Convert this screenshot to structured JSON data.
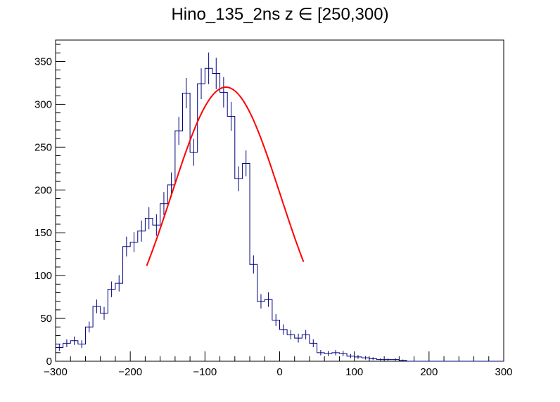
{
  "chart_data": {
    "type": "histogram",
    "title": "Hino_135_2ns z  ∈ [250,300)",
    "xlabel": "",
    "ylabel": "",
    "xlim": [
      -300,
      300
    ],
    "ylim": [
      0,
      375
    ],
    "grid": false,
    "bin_width": 10,
    "x_ticks": [
      -300,
      -200,
      -100,
      0,
      100,
      200,
      300
    ],
    "x_tick_labels": [
      "−300",
      "−200",
      "−100",
      "0",
      "100",
      "200",
      "300"
    ],
    "y_ticks": [
      0,
      50,
      100,
      150,
      200,
      250,
      300,
      350
    ],
    "y_tick_labels": [
      "0",
      "50",
      "100",
      "150",
      "200",
      "250",
      "300",
      "350"
    ],
    "series": [
      {
        "type": "histogram",
        "color": "#000080",
        "bin_low_edges": [
          -300,
          -290,
          -280,
          -270,
          -260,
          -250,
          -240,
          -230,
          -220,
          -210,
          -200,
          -190,
          -180,
          -170,
          -160,
          -150,
          -140,
          -130,
          -120,
          -110,
          -100,
          -90,
          -80,
          -70,
          -60,
          -50,
          -40,
          -30,
          -20,
          -10,
          0,
          10,
          20,
          30,
          40,
          50,
          60,
          70,
          80,
          90,
          100,
          110,
          120,
          130,
          140,
          150,
          160,
          170,
          180,
          190,
          200,
          210,
          220,
          230,
          240,
          250,
          260,
          270,
          280,
          290
        ],
        "values": [
          16,
          21,
          24,
          20,
          40,
          64,
          56,
          84,
          91,
          134,
          139,
          152,
          167,
          159,
          184,
          206,
          269,
          313,
          244,
          324,
          342,
          336,
          314,
          286,
          213,
          231,
          113,
          70,
          72,
          48,
          37,
          31,
          27,
          31,
          21,
          10,
          9,
          10,
          9,
          6,
          5,
          4,
          3,
          2,
          2,
          2,
          1,
          0,
          0,
          0,
          0,
          0,
          0,
          0,
          0,
          0,
          0,
          0,
          0,
          0
        ]
      },
      {
        "type": "line",
        "color": "#ff0000",
        "fit": "gaussian",
        "x_range": [
          -178,
          32
        ],
        "amplitude": 320,
        "mean": -72,
        "sigma": 73
      }
    ]
  }
}
